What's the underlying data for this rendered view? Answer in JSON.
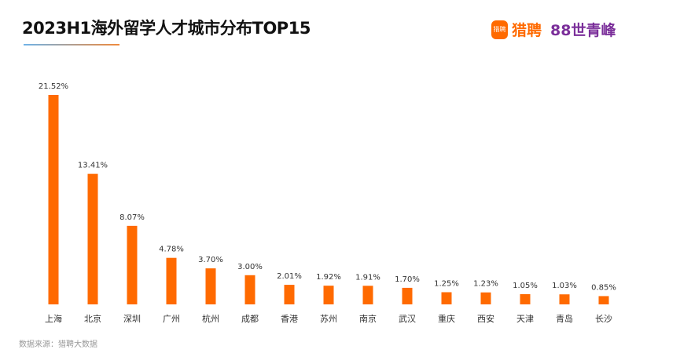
{
  "header": {
    "title": "2023H1海外留学人才城市分布TOP15",
    "logo_badge": "猎聘",
    "logo_text": "猎聘",
    "logo_partner": "𝟴𝟴世青峰"
  },
  "source": "数据来源：猎聘大数据",
  "colors": {
    "bar": "#ff6a00"
  },
  "chart_data": {
    "type": "bar",
    "title": "2023H1海外留学人才城市分布TOP15",
    "categories": [
      "上海",
      "北京",
      "深圳",
      "广州",
      "杭州",
      "成都",
      "香港",
      "苏州",
      "南京",
      "武汉",
      "重庆",
      "西安",
      "天津",
      "青岛",
      "长沙"
    ],
    "values": [
      21.52,
      13.41,
      8.07,
      4.78,
      3.7,
      3.0,
      2.01,
      1.92,
      1.91,
      1.7,
      1.25,
      1.23,
      1.05,
      1.03,
      0.85
    ],
    "labels": [
      "21.52%",
      "13.41%",
      "8.07%",
      "4.78%",
      "3.70%",
      "3.00%",
      "2.01%",
      "1.92%",
      "1.91%",
      "1.70%",
      "1.25%",
      "1.23%",
      "1.05%",
      "1.03%",
      "0.85%"
    ],
    "xlabel": "",
    "ylabel": "",
    "ylim": [
      0,
      21.52
    ],
    "grid": false
  }
}
